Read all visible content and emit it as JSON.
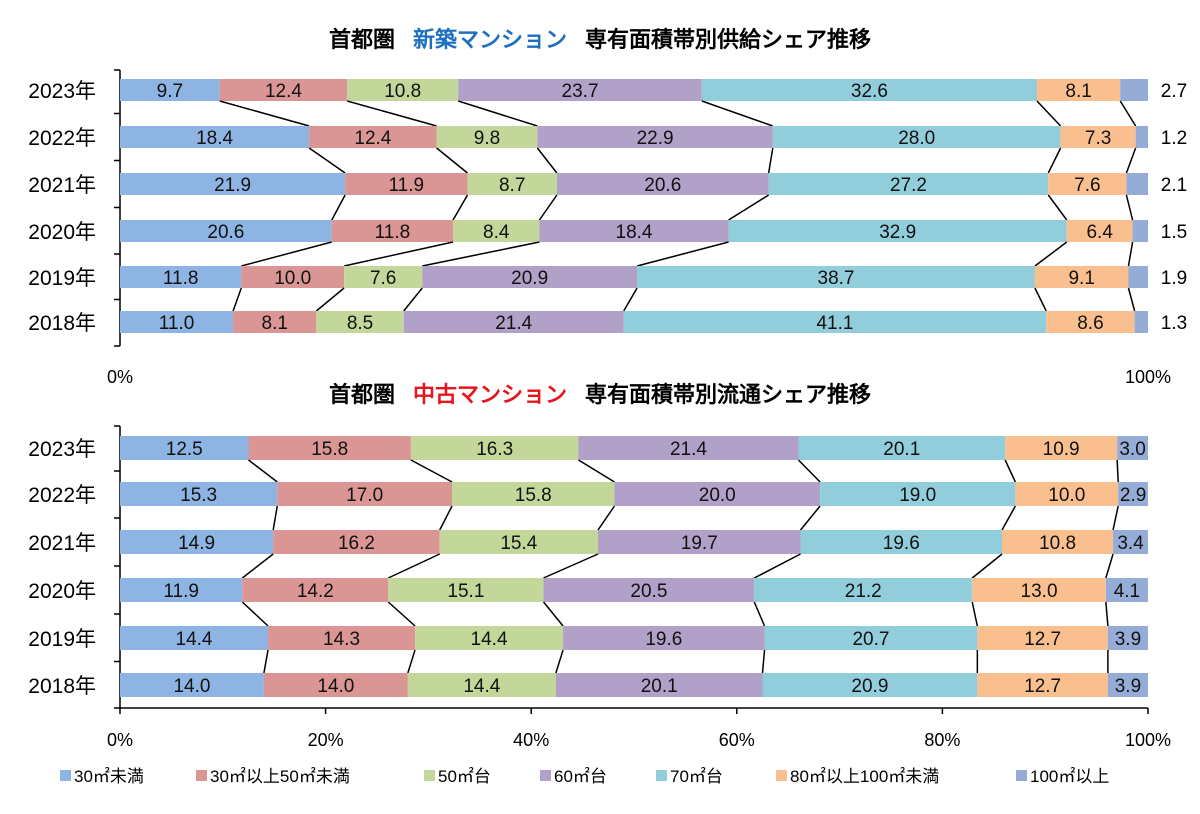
{
  "chart_data": [
    {
      "type": "bar",
      "stacked": true,
      "orientation": "horizontal",
      "title_parts": [
        "首都圏",
        "新築マンション",
        "専有面積帯別供給シェア推移"
      ],
      "title_colors": [
        "#000000",
        "#1f6fc0",
        "#000000"
      ],
      "categories": [
        "2023年",
        "2022年",
        "2021年",
        "2020年",
        "2019年",
        "2018年"
      ],
      "xlim": [
        0,
        100
      ],
      "xtick_labels": [
        "0%",
        "100%"
      ],
      "series": [
        {
          "name": "30㎡未満",
          "color": "#8db4e2",
          "values": [
            9.7,
            18.4,
            21.9,
            20.6,
            11.8,
            11.0
          ]
        },
        {
          "name": "30㎡以上50㎡未満",
          "color": "#da9694",
          "values": [
            12.4,
            12.4,
            11.9,
            11.8,
            10.0,
            8.1
          ]
        },
        {
          "name": "50㎡台",
          "color": "#c4d79b",
          "values": [
            10.8,
            9.8,
            8.7,
            8.4,
            7.6,
            8.5
          ]
        },
        {
          "name": "60㎡台",
          "color": "#b1a0c7",
          "values": [
            23.7,
            22.9,
            20.6,
            18.4,
            20.9,
            21.4
          ]
        },
        {
          "name": "70㎡台",
          "color": "#92cddc",
          "values": [
            32.6,
            28.0,
            27.2,
            32.9,
            38.7,
            41.1
          ]
        },
        {
          "name": "80㎡以上100㎡未満",
          "color": "#fabf8f",
          "values": [
            8.1,
            7.3,
            7.6,
            6.4,
            9.1,
            8.6
          ]
        },
        {
          "name": "100㎡以上",
          "color": "#95add6",
          "values": [
            2.7,
            1.2,
            2.1,
            1.5,
            1.9,
            1.3
          ]
        }
      ]
    },
    {
      "type": "bar",
      "stacked": true,
      "orientation": "horizontal",
      "title_parts": [
        "首都圏",
        "中古マンション",
        "専有面積帯別流通シェア推移"
      ],
      "title_colors": [
        "#000000",
        "#e8141b",
        "#000000"
      ],
      "categories": [
        "2023年",
        "2022年",
        "2021年",
        "2020年",
        "2019年",
        "2018年"
      ],
      "xlim": [
        0,
        100
      ],
      "xtick_labels": [
        "0%",
        "20%",
        "40%",
        "60%",
        "80%",
        "100%"
      ],
      "series": [
        {
          "name": "30㎡未満",
          "color": "#8db4e2",
          "values": [
            12.5,
            15.3,
            14.9,
            11.9,
            14.4,
            14.0
          ]
        },
        {
          "name": "30㎡以上50㎡未満",
          "color": "#da9694",
          "values": [
            15.8,
            17.0,
            16.2,
            14.2,
            14.3,
            14.0
          ]
        },
        {
          "name": "50㎡台",
          "color": "#c4d79b",
          "values": [
            16.3,
            15.8,
            15.4,
            15.1,
            14.4,
            14.4
          ]
        },
        {
          "name": "60㎡台",
          "color": "#b1a0c7",
          "values": [
            21.4,
            20.0,
            19.7,
            20.5,
            19.6,
            20.1
          ]
        },
        {
          "name": "70㎡台",
          "color": "#92cddc",
          "values": [
            20.1,
            19.0,
            19.6,
            21.2,
            20.7,
            20.9
          ]
        },
        {
          "name": "80㎡以上100㎡未満",
          "color": "#fabf8f",
          "values": [
            10.9,
            10.0,
            10.8,
            13.0,
            12.7,
            12.7
          ]
        },
        {
          "name": "100㎡以上",
          "color": "#95add6",
          "values": [
            3.0,
            2.9,
            3.4,
            4.1,
            3.9,
            3.9
          ]
        }
      ]
    }
  ],
  "legend": {
    "placement": "bottom"
  }
}
